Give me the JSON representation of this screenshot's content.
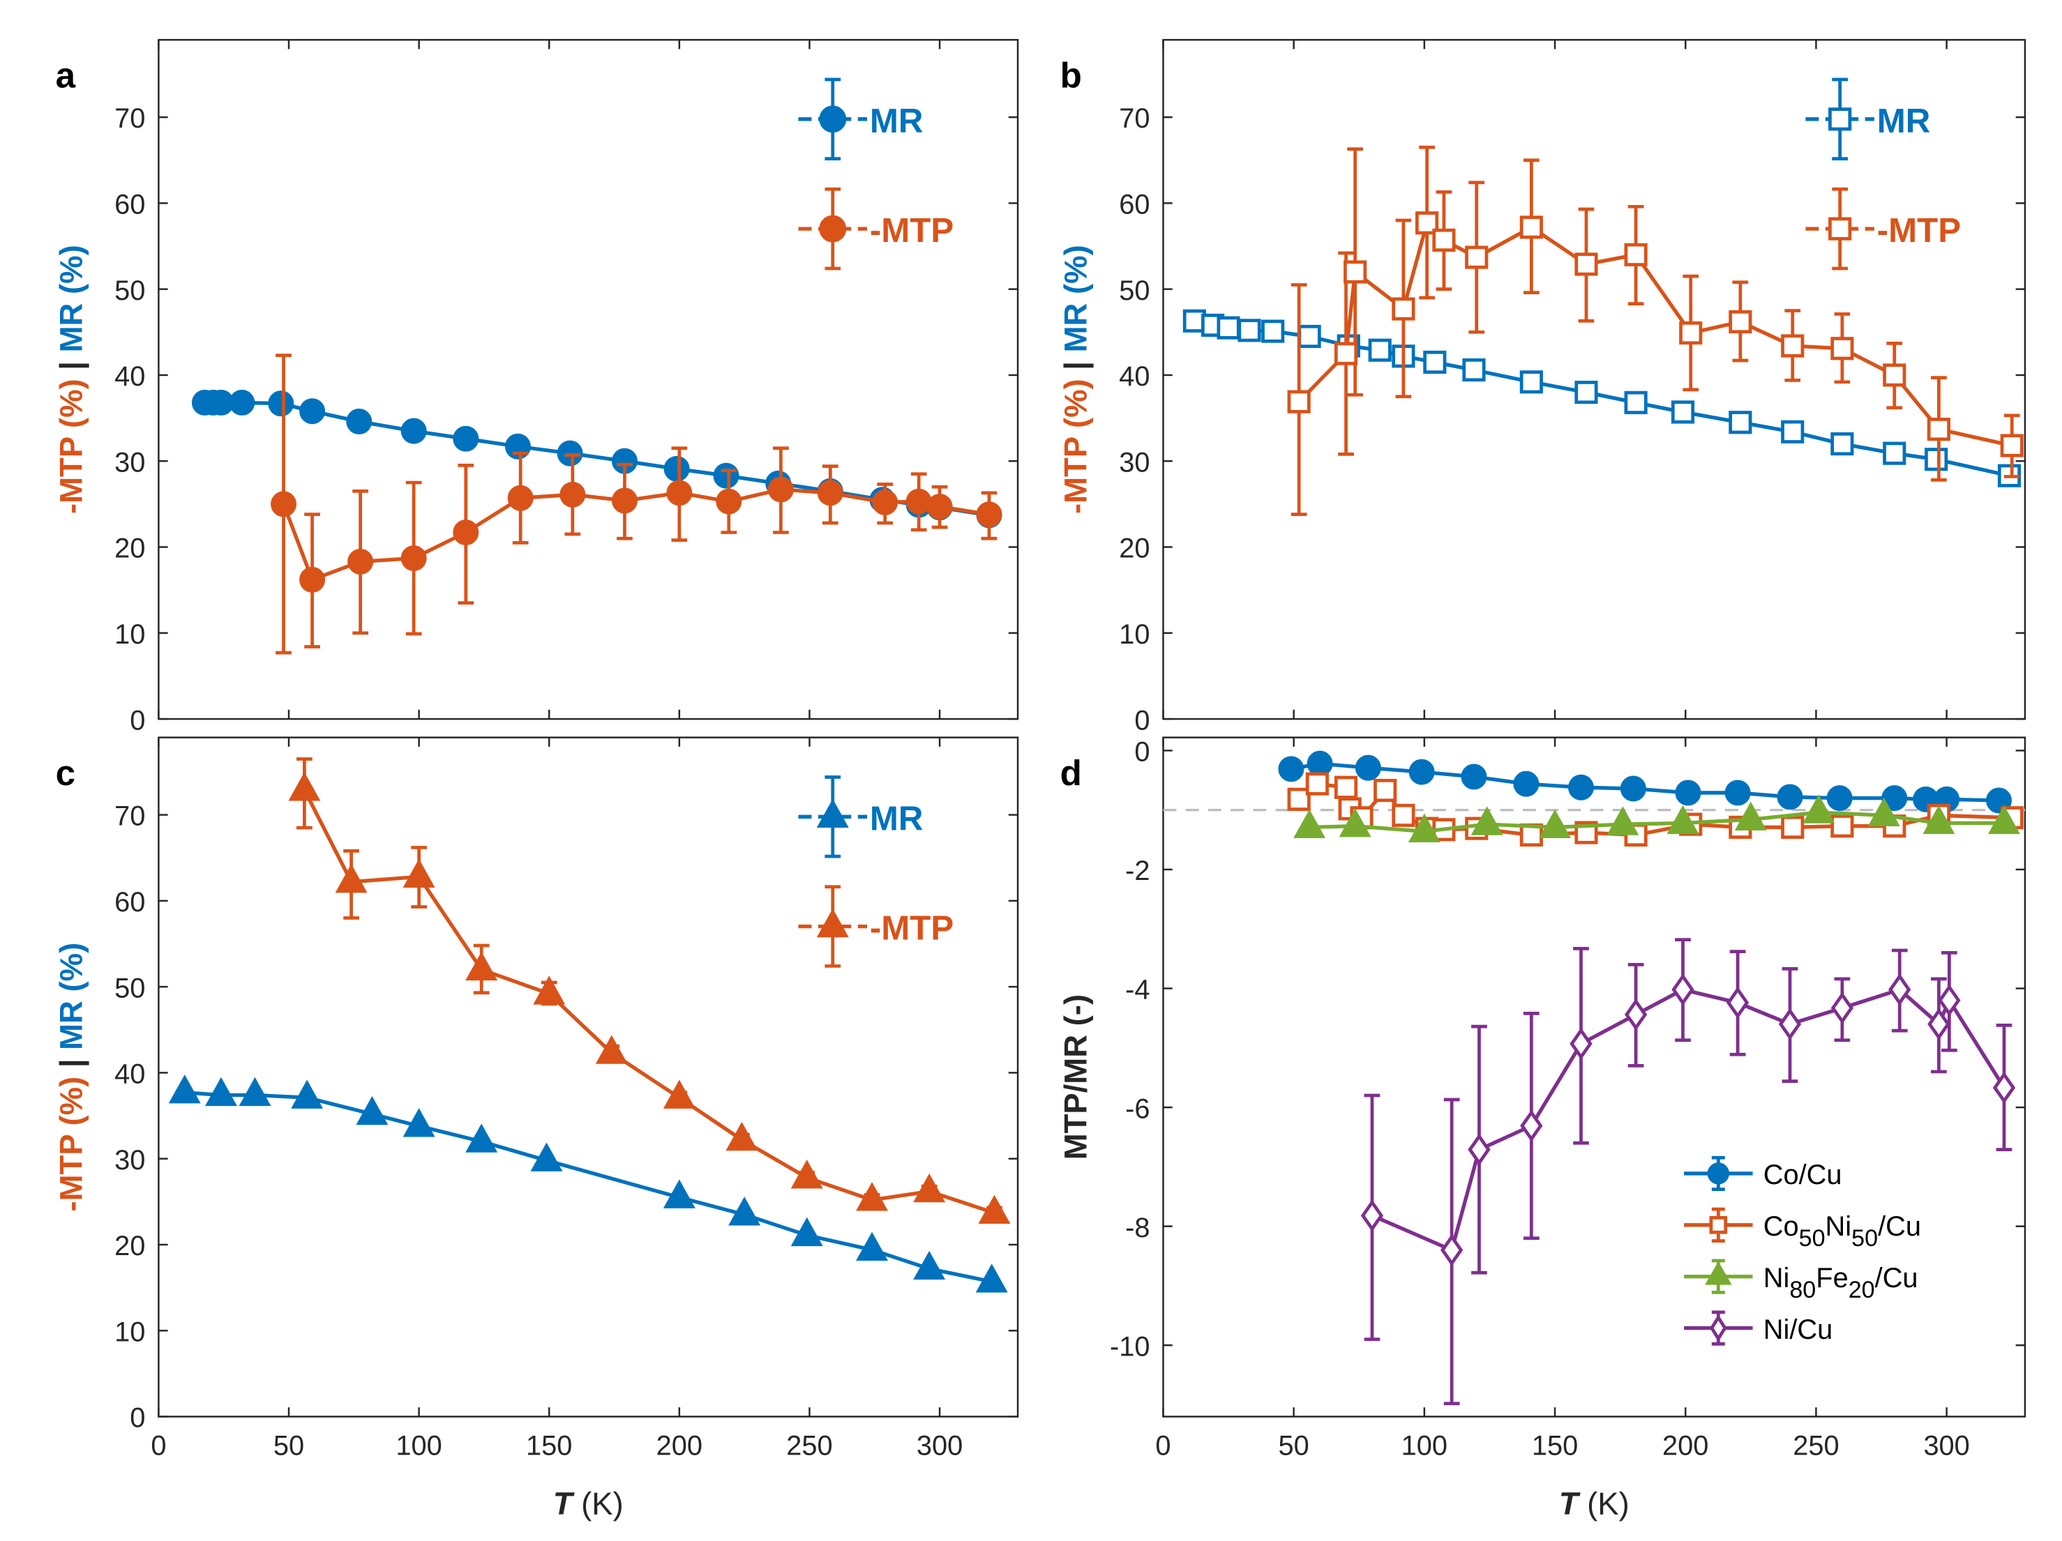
{
  "colors": {
    "blue": "#0072BD",
    "orange": "#D95319",
    "green": "#77AC30",
    "purple": "#7E2F8E",
    "reference_line": "#BDBDBD"
  },
  "chart_data": [
    {
      "panel": "a",
      "type": "line",
      "xlim": [
        0,
        330
      ],
      "ylim": [
        0,
        79
      ],
      "xticks": [
        0,
        50,
        100,
        150,
        200,
        250,
        300
      ],
      "xticklabels": [
        "",
        "",
        "",
        "",
        "",
        "",
        ""
      ],
      "yticks": [
        0,
        10,
        20,
        30,
        40,
        50,
        60,
        70
      ],
      "yticklabels": [
        "0",
        "10",
        "20",
        "30",
        "40",
        "50",
        "60",
        "70"
      ],
      "ylabel_parts": [
        {
          "text": "-MTP (%)",
          "color": "orange"
        },
        {
          "text": " | ",
          "color": "black"
        },
        {
          "text": "MR (%)",
          "color": "blue"
        }
      ],
      "xlabel_parts": [],
      "legend": "top-right",
      "series": [
        {
          "name": "MR",
          "color": "blue",
          "marker": "circle-filled",
          "x": [
            17.7,
            21,
            24,
            32,
            47,
            59,
            77,
            98,
            118,
            138,
            158,
            179,
            199,
            218,
            238,
            258,
            278,
            292,
            300,
            319
          ],
          "y": [
            36.8,
            36.8,
            36.8,
            36.8,
            36.7,
            35.8,
            34.6,
            33.5,
            32.6,
            31.7,
            30.9,
            30,
            29.1,
            28.3,
            27.4,
            26.5,
            25.5,
            24.9,
            24.6,
            23.7
          ]
        },
        {
          "name": "-MTP",
          "color": "orange",
          "marker": "circle-filled",
          "x": [
            48,
            59,
            77.5,
            98,
            118,
            139,
            159,
            179,
            200,
            219,
            239,
            258,
            279,
            292,
            300,
            319
          ],
          "y": [
            25,
            16.2,
            18.3,
            18.7,
            21.7,
            25.7,
            26.1,
            25.4,
            26.3,
            25.3,
            26.7,
            26.3,
            25.2,
            25.3,
            24.7,
            23.8
          ],
          "err": [
            [
              7.7,
              42.3
            ],
            [
              8.4,
              23.8
            ],
            [
              10,
              26.5
            ],
            [
              9.9,
              27.5
            ],
            [
              13.5,
              29.5
            ],
            [
              20.5,
              30.9
            ],
            [
              21.5,
              30.7
            ],
            [
              21,
              29.6
            ],
            [
              20.8,
              31.5
            ],
            [
              21.7,
              28.9
            ],
            [
              21.7,
              31.5
            ],
            [
              22.8,
              29.4
            ],
            [
              22.8,
              27.3
            ],
            [
              22,
              28.5
            ],
            [
              22.3,
              27
            ],
            [
              21,
              26.3
            ]
          ]
        }
      ]
    },
    {
      "panel": "b",
      "type": "line",
      "xlim": [
        0,
        330
      ],
      "ylim": [
        0,
        79
      ],
      "xticks": [
        0,
        50,
        100,
        150,
        200,
        250,
        300
      ],
      "xticklabels": [
        "",
        "",
        "",
        "",
        "",
        "",
        ""
      ],
      "yticks": [
        0,
        10,
        20,
        30,
        40,
        50,
        60,
        70
      ],
      "yticklabels": [
        "0",
        "10",
        "20",
        "30",
        "40",
        "50",
        "60",
        "70"
      ],
      "ylabel_parts": [
        {
          "text": "-MTP (%)",
          "color": "orange"
        },
        {
          "text": " | ",
          "color": "black"
        },
        {
          "text": "MR (%)",
          "color": "blue"
        }
      ],
      "xlabel_parts": [],
      "legend": "top-right",
      "series": [
        {
          "name": "MR",
          "color": "blue",
          "marker": "square-open",
          "x": [
            12,
            19,
            25,
            33,
            42,
            56,
            71,
            83,
            92,
            104,
            119,
            141,
            162,
            181,
            199,
            221,
            241,
            260,
            280,
            296,
            324
          ],
          "y": [
            46.3,
            45.8,
            45.5,
            45.2,
            45.1,
            44.5,
            43.4,
            42.9,
            42.2,
            41.5,
            40.6,
            39.2,
            38,
            36.8,
            35.7,
            34.5,
            33.4,
            32,
            30.9,
            30.2,
            28.3
          ]
        },
        {
          "name": "-MTP",
          "color": "orange",
          "marker": "square-open",
          "x": [
            52,
            70,
            73.5,
            92,
            101,
            107.5,
            120,
            141,
            162,
            181,
            202,
            221,
            241,
            260,
            280,
            297,
            325
          ],
          "y": [
            36.9,
            42.5,
            52,
            47.7,
            57.7,
            55.7,
            53.7,
            57.2,
            52.9,
            54,
            44.9,
            46.2,
            43.4,
            43.1,
            40,
            33.7,
            31.8
          ],
          "err": [
            [
              23.8,
              50.5
            ],
            [
              30.8,
              54.2
            ],
            [
              37.7,
              66.3
            ],
            [
              37.5,
              58
            ],
            [
              49,
              66.5
            ],
            [
              50,
              61.3
            ],
            [
              45,
              62.4
            ],
            [
              49.6,
              65
            ],
            [
              46.3,
              59.3
            ],
            [
              48.3,
              59.6
            ],
            [
              38.3,
              51.5
            ],
            [
              41.7,
              50.8
            ],
            [
              39.4,
              47.5
            ],
            [
              39.2,
              47.1
            ],
            [
              36.2,
              43.7
            ],
            [
              27.8,
              39.7
            ],
            [
              28.2,
              35.3
            ]
          ]
        }
      ]
    },
    {
      "panel": "c",
      "type": "line",
      "xlim": [
        0,
        330
      ],
      "ylim": [
        0,
        79
      ],
      "xticks": [
        0,
        50,
        100,
        150,
        200,
        250,
        300
      ],
      "xticklabels": [
        "0",
        "50",
        "100",
        "150",
        "200",
        "250",
        "300"
      ],
      "yticks": [
        0,
        10,
        20,
        30,
        40,
        50,
        60,
        70
      ],
      "yticklabels": [
        "0",
        "10",
        "20",
        "30",
        "40",
        "50",
        "60",
        "70"
      ],
      "ylabel_parts": [
        {
          "text": "-MTP (%)",
          "color": "orange"
        },
        {
          "text": " | ",
          "color": "black"
        },
        {
          "text": "MR (%)",
          "color": "blue"
        }
      ],
      "xlabel_parts": [
        {
          "text": "T",
          "italic": true
        },
        {
          "text": " (K)"
        }
      ],
      "legend": "top-right",
      "series": [
        {
          "name": "MR",
          "color": "blue",
          "marker": "triangle-filled",
          "x": [
            10,
            24,
            37,
            57,
            82,
            100,
            124,
            149,
            200,
            225,
            249,
            274,
            296,
            320
          ],
          "y": [
            37.7,
            37.4,
            37.4,
            37.1,
            35.2,
            33.8,
            32,
            29.8,
            25.5,
            23.5,
            21.1,
            19.4,
            17.2,
            15.7
          ]
        },
        {
          "name": "-MTP",
          "color": "orange",
          "marker": "triangle-filled",
          "x": [
            56,
            74,
            100,
            124,
            150,
            174,
            200,
            224,
            249,
            274,
            296,
            321
          ],
          "y": [
            72.9,
            62.2,
            62.8,
            52,
            49.2,
            42.3,
            37.1,
            32.2,
            27.8,
            25.2,
            26.2,
            23.7
          ],
          "err": [
            [
              68.5,
              76.5
            ],
            [
              58,
              65.8
            ],
            [
              59.3,
              66.2
            ],
            [
              49.3,
              54.8
            ],
            [
              48,
              50.5
            ],
            [
              41.5,
              43.1
            ],
            [
              36.5,
              37.7
            ],
            [
              31.6,
              32.8
            ],
            [
              27.2,
              28.4
            ],
            [
              24.6,
              25.8
            ],
            [
              25.6,
              26.8
            ],
            [
              23.1,
              24.3
            ]
          ]
        }
      ]
    },
    {
      "panel": "d",
      "type": "line",
      "xlim": [
        0,
        330
      ],
      "ylim": [
        -11.2,
        0.22
      ],
      "xticks": [
        0,
        50,
        100,
        150,
        200,
        250,
        300
      ],
      "xticklabels": [
        "0",
        "50",
        "100",
        "150",
        "200",
        "250",
        "300"
      ],
      "yticks": [
        -10,
        -8,
        -6,
        -4,
        -2,
        0
      ],
      "yticklabels": [
        "-10",
        "-8",
        "-6",
        "-4",
        "-2",
        "0"
      ],
      "ylabel_parts": [
        {
          "text": "MTP/MR (-)",
          "color": "black"
        }
      ],
      "xlabel_parts": [
        {
          "text": "T",
          "italic": true
        },
        {
          "text": " (K)"
        }
      ],
      "legend": "bottom-right",
      "reference_line_y": -1,
      "series": [
        {
          "name": "Co/Cu",
          "label_parts": [
            {
              "t": "Co/Cu"
            }
          ],
          "color": "blue",
          "marker": "circle-filled",
          "x": [
            49,
            60,
            78.5,
            99,
            119,
            139,
            160,
            180,
            201,
            220,
            240,
            259,
            280,
            292,
            300,
            320
          ],
          "y": [
            -0.31,
            -0.22,
            -0.29,
            -0.36,
            -0.44,
            -0.56,
            -0.62,
            -0.64,
            -0.71,
            -0.71,
            -0.78,
            -0.8,
            -0.8,
            -0.82,
            -0.82,
            -0.84
          ]
        },
        {
          "name": "Co50Ni50/Cu",
          "label_parts": [
            {
              "t": "Co"
            },
            {
              "t": "50",
              "sub": true
            },
            {
              "t": "Ni"
            },
            {
              "t": "50",
              "sub": true
            },
            {
              "t": "/Cu"
            }
          ],
          "color": "orange",
          "marker": "square-open",
          "x": [
            52,
            59,
            70,
            71.5,
            76,
            85,
            92,
            101,
            107.5,
            120,
            141,
            162,
            181,
            202,
            221,
            241,
            260,
            280,
            297,
            325
          ],
          "y": [
            -0.82,
            -0.56,
            -0.62,
            -0.98,
            -1.13,
            -0.67,
            -1.09,
            -1.31,
            -1.33,
            -1.31,
            -1.42,
            -1.38,
            -1.42,
            -1.24,
            -1.29,
            -1.29,
            -1.27,
            -1.27,
            -1.09,
            -1.13
          ]
        },
        {
          "name": "Ni80Fe20/Cu",
          "label_parts": [
            {
              "t": "Ni"
            },
            {
              "t": "80",
              "sub": true
            },
            {
              "t": "Fe"
            },
            {
              "t": "20",
              "sub": true
            },
            {
              "t": "/Cu"
            }
          ],
          "color": "green",
          "marker": "triangle-filled",
          "x": [
            56,
            73.5,
            100,
            124,
            150,
            176,
            199,
            225,
            251,
            276,
            297,
            322
          ],
          "y": [
            -1.29,
            -1.27,
            -1.36,
            -1.24,
            -1.29,
            -1.24,
            -1.22,
            -1.16,
            -1.04,
            -1.09,
            -1.22,
            -1.22
          ]
        },
        {
          "name": "Ni/Cu",
          "label_parts": [
            {
              "t": "Ni/Cu"
            }
          ],
          "color": "purple",
          "marker": "diamond-open",
          "x": [
            80,
            110.5,
            121,
            141,
            160,
            181,
            199,
            220,
            240,
            260,
            282,
            297,
            301,
            322
          ],
          "y": [
            -7.82,
            -8.4,
            -6.71,
            -6.31,
            -4.93,
            -4.44,
            -4.02,
            -4.24,
            -4.6,
            -4.33,
            -4.02,
            -4.6,
            -4.2,
            -5.67
          ],
          "err": [
            [
              -9.9,
              -5.8
            ],
            [
              -10.98,
              -5.87
            ],
            [
              -8.78,
              -4.64
            ],
            [
              -8.2,
              -4.42
            ],
            [
              -6.6,
              -3.33
            ],
            [
              -5.3,
              -3.6
            ],
            [
              -4.87,
              -3.18
            ],
            [
              -5.11,
              -3.38
            ],
            [
              -5.56,
              -3.67
            ],
            [
              -4.87,
              -3.84
            ],
            [
              -4.71,
              -3.36
            ],
            [
              -5.4,
              -3.84
            ],
            [
              -5.04,
              -3.4
            ],
            [
              -6.71,
              -4.62
            ]
          ]
        }
      ]
    }
  ]
}
